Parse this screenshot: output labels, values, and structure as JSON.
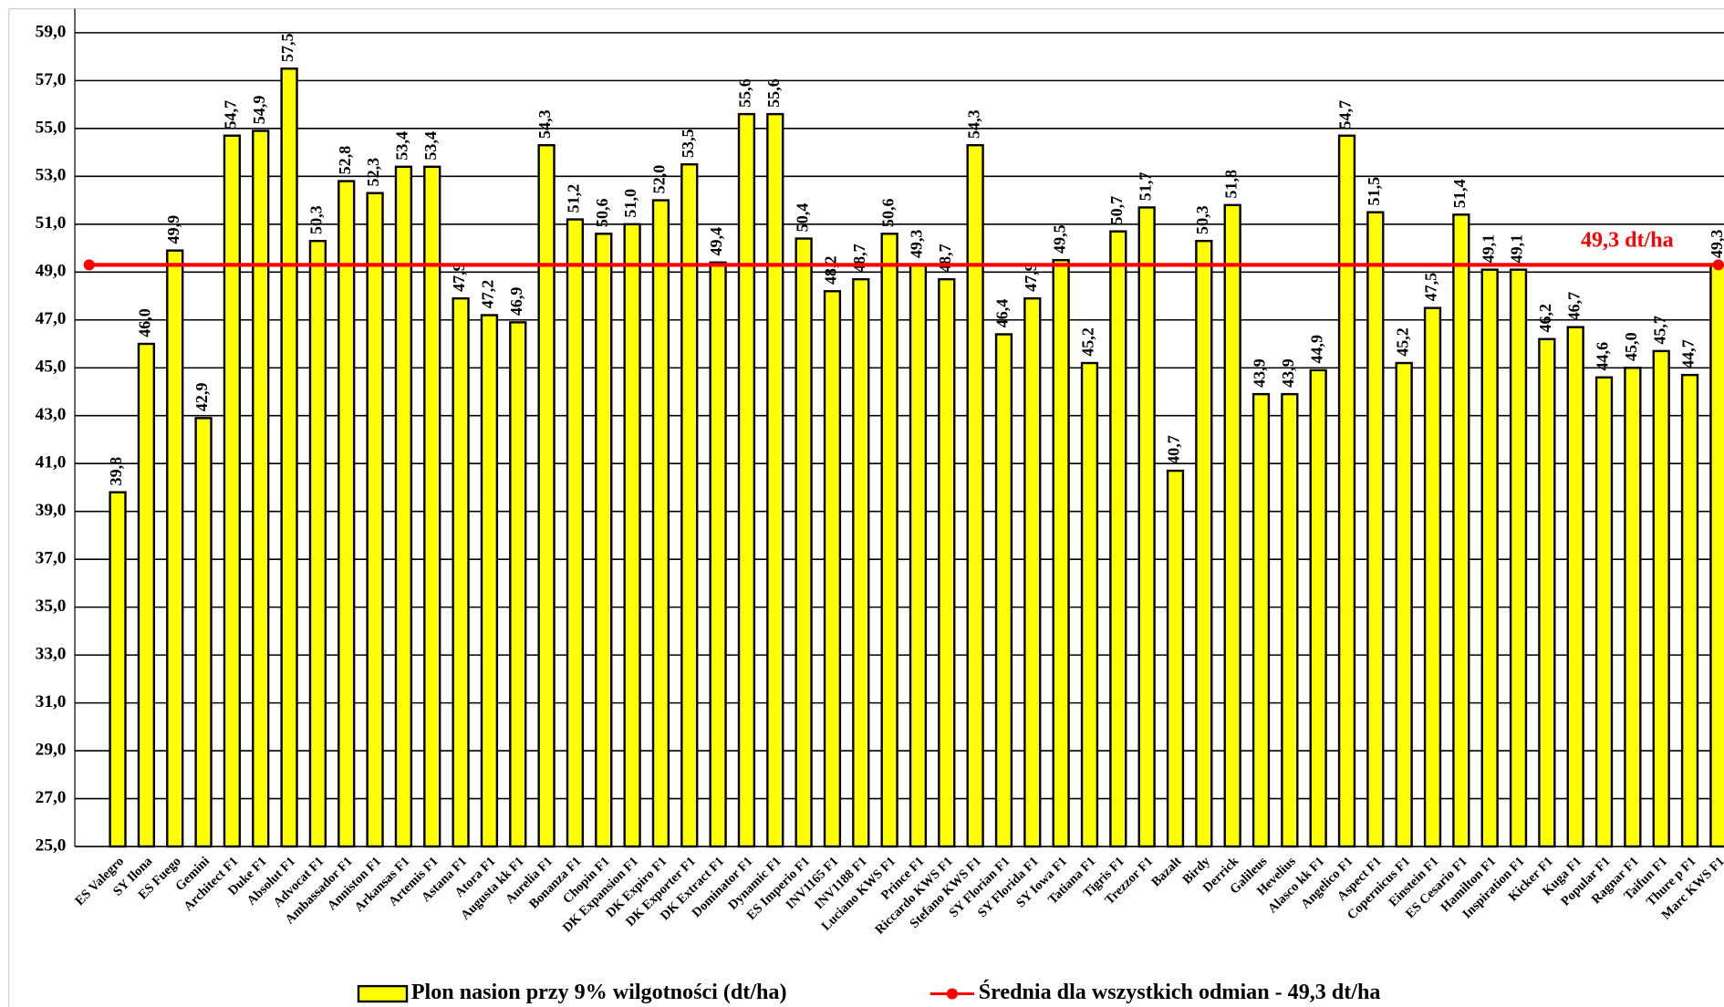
{
  "chart_data": {
    "type": "bar",
    "categories": [
      null,
      "ES Valegro",
      "SY Ilona",
      "ES Fuego",
      "Gemini",
      "Architect F1",
      "Duke F1",
      "Absolut F1",
      "Advocat F1",
      "Ambassador F1",
      "Anniston F1",
      "Arkansas F1",
      "Artemis F1",
      "Astana F1",
      "Atora F1",
      "Augusta  kk F1",
      "Aurelia F1",
      "Bonanza F1",
      "Chopin F1",
      "DK Expansion F1",
      "DK Expiro F1",
      "DK Exporter F1",
      "DK Extract F1",
      "Dominator F1",
      "Dynamic F1",
      "ES Imperio F1",
      "INV1165 F1",
      "INV1188 F1",
      "Luciano KWS F1",
      "Prince F1",
      "Riccardo KWS F1",
      "Stefano KWS F1",
      "SY Florian F1",
      "SY Florida F1",
      "SY Iowa F1",
      "Tatiana F1",
      "Tigris F1",
      "Trezzor F1",
      "Bazalt",
      "Birdy",
      "Derrick",
      "Galileus",
      "Hevelius",
      "Alasco  kk F1",
      "Angelico F1",
      "Aspect F1",
      "Copernicus F1",
      "Einstein F1",
      "ES Cesario F1",
      "Hamilton F1",
      "Inspiration F1",
      "Kicker F1",
      "Kuga F1",
      "Popular F1",
      "Ragnar F1",
      "Taifun F1",
      "Thure  p F1",
      "Marc KWS F1"
    ],
    "series": [
      {
        "name": "Plon nasion przy 9% wilgotności (dt/ha)",
        "color": "#ffff00",
        "values": [
          null,
          39.8,
          46.0,
          49.9,
          42.9,
          54.7,
          54.9,
          57.5,
          50.3,
          52.8,
          52.3,
          53.4,
          53.4,
          47.9,
          47.2,
          46.9,
          54.3,
          51.2,
          50.6,
          51.0,
          52.0,
          53.5,
          49.4,
          55.6,
          55.6,
          50.4,
          48.2,
          48.7,
          50.6,
          49.3,
          48.7,
          54.3,
          46.4,
          47.9,
          49.5,
          45.2,
          50.7,
          51.7,
          40.7,
          50.3,
          51.8,
          43.9,
          43.9,
          44.9,
          54.7,
          51.5,
          45.2,
          47.5,
          51.4,
          49.1,
          49.1,
          46.2,
          46.7,
          44.6,
          45.0,
          45.7,
          44.7,
          49.3
        ],
        "value_labels": [
          null,
          "39,8",
          "46,0",
          "49,9",
          "42,9",
          "54,7",
          "54,9",
          "57,5",
          "50,3",
          "52,8",
          "52,3",
          "53,4",
          "53,4",
          "47,9",
          "47,2",
          "46,9",
          "54,3",
          "51,2",
          "50,6",
          "51,0",
          "52,0",
          "53,5",
          "49,4",
          "55,6",
          "55,6",
          "50,4",
          "48,2",
          "48,7",
          "50,6",
          "49,3",
          "48,7",
          "54,3",
          "46,4",
          "47,9",
          "49,5",
          "45,2",
          "50,7",
          "51,7",
          "40,7",
          "50,3",
          "51,8",
          "43,9",
          "43,9",
          "44,9",
          "54,7",
          "51,5",
          "45,2",
          "47,5",
          "51,4",
          "49,1",
          "49,1",
          "46,2",
          "46,7",
          "44,6",
          "45,0",
          "45,7",
          "44,7",
          "49,3"
        ]
      },
      {
        "name": "Średnia dla wszystkich odmian - 49,3 dt/ha",
        "color": "#ff0000",
        "type": "line",
        "values": [
          49.3,
          49.3,
          49.3,
          49.3,
          49.3,
          49.3,
          49.3,
          49.3,
          49.3,
          49.3,
          49.3,
          49.3,
          49.3,
          49.3,
          49.3,
          49.3,
          49.3,
          49.3,
          49.3,
          49.3,
          49.3,
          49.3,
          49.3,
          49.3,
          49.3,
          49.3,
          49.3,
          49.3,
          49.3,
          49.3,
          49.3,
          49.3,
          49.3,
          49.3,
          49.3,
          49.3,
          49.3,
          49.3,
          49.3,
          49.3,
          49.3,
          49.3,
          49.3,
          49.3,
          49.3,
          49.3,
          49.3,
          49.3,
          49.3,
          49.3,
          49.3,
          49.3,
          49.3,
          49.3,
          49.3,
          49.3,
          49.3,
          49.3
        ]
      }
    ],
    "annotation": "49,3 dt/ha",
    "ylim": [
      25,
      60
    ],
    "yticks": [
      {
        "value": 25,
        "label": "25,0"
      },
      {
        "value": 27,
        "label": "27,0"
      },
      {
        "value": 29,
        "label": "29,0"
      },
      {
        "value": 31,
        "label": "31,0"
      },
      {
        "value": 33,
        "label": "33,0"
      },
      {
        "value": 35,
        "label": "35,0"
      },
      {
        "value": 37,
        "label": "37,0"
      },
      {
        "value": 39,
        "label": "39,0"
      },
      {
        "value": 41,
        "label": "41,0"
      },
      {
        "value": 43,
        "label": "43,0"
      },
      {
        "value": 45,
        "label": "45,0"
      },
      {
        "value": 47,
        "label": "47,0"
      },
      {
        "value": 49,
        "label": "49,0"
      },
      {
        "value": 51,
        "label": "51,0"
      },
      {
        "value": 53,
        "label": "53,0"
      },
      {
        "value": 55,
        "label": "55,0"
      },
      {
        "value": 57,
        "label": "57,0"
      },
      {
        "value": 59,
        "label": "59,0"
      }
    ],
    "grid": true,
    "legend": "bottom"
  }
}
